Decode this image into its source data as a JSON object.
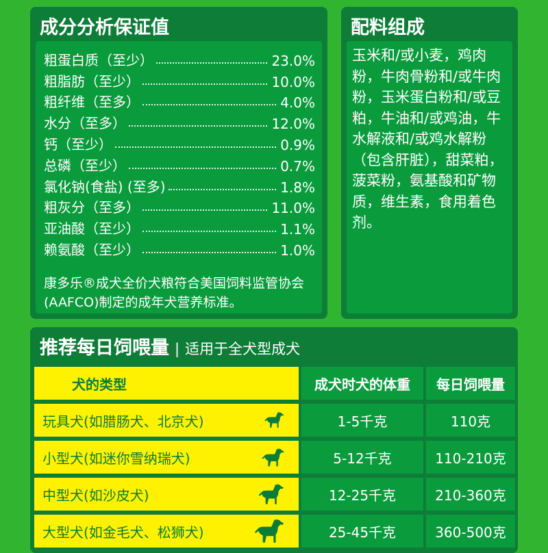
{
  "guaranteed_analysis": {
    "title": "成分分析保证值",
    "rows": [
      {
        "name": "粗蛋白质（至少）",
        "value": "23.0%"
      },
      {
        "name": "粗脂肪（至少）",
        "value": "10.0%"
      },
      {
        "name": "粗纤维（至多）",
        "value": "4.0%"
      },
      {
        "name": "水分（至多）",
        "value": "12.0%"
      },
      {
        "name": "钙（至少）",
        "value": "0.9%"
      },
      {
        "name": "总磷（至少）",
        "value": "0.7%"
      },
      {
        "name": "氯化钠(食盐) (至多)",
        "value": "1.8%"
      },
      {
        "name": "粗灰分（至多）",
        "value": "11.0%"
      },
      {
        "name": "亚油酸（至少）",
        "value": "1.1%"
      },
      {
        "name": "赖氨酸（至少）",
        "value": "1.0%"
      }
    ],
    "note": "康多乐®成犬全价犬粮符合美国饲料监管协会(AAFCO)制定的成年犬营养标准。"
  },
  "ingredients": {
    "title": "配料组成",
    "text": "玉米和/或小麦，鸡肉粉，牛肉骨粉和/或牛肉粉，玉米蛋白粉和/或豆粕，牛油和/或鸡油，牛水解液和/或鸡水解粉（包含肝脏），甜菜粕，菠菜粉，氨基酸和矿物质，维生素，食用着色剂。"
  },
  "feeding": {
    "title": "推荐每日饲喂量",
    "separator": "|",
    "subtitle": "适用于全犬型成犬",
    "headers": [
      "犬的类型",
      "成犬时犬的体重",
      "每日饲喂量"
    ],
    "rows": [
      {
        "type": "玩具犬(如腊肠犬、北京犬)",
        "weight": "1-5千克",
        "amount": "110克",
        "icon": "toy-dog-icon"
      },
      {
        "type": "小型犬(如迷你雪纳瑞犬)",
        "weight": "5-12千克",
        "amount": "110-210克",
        "icon": "small-dog-icon"
      },
      {
        "type": "中型犬(如沙皮犬)",
        "weight": "12-25千克",
        "amount": "210-360克",
        "icon": "medium-dog-icon"
      },
      {
        "type": "大型犬(如金毛犬、松狮犬)",
        "weight": "25-45千克",
        "amount": "360-500克",
        "icon": "large-dog-icon"
      }
    ]
  },
  "colors": {
    "background": "#31b531",
    "panel": "#0d7d38",
    "inner": "#0a9b3d",
    "highlight": "#fff200"
  }
}
